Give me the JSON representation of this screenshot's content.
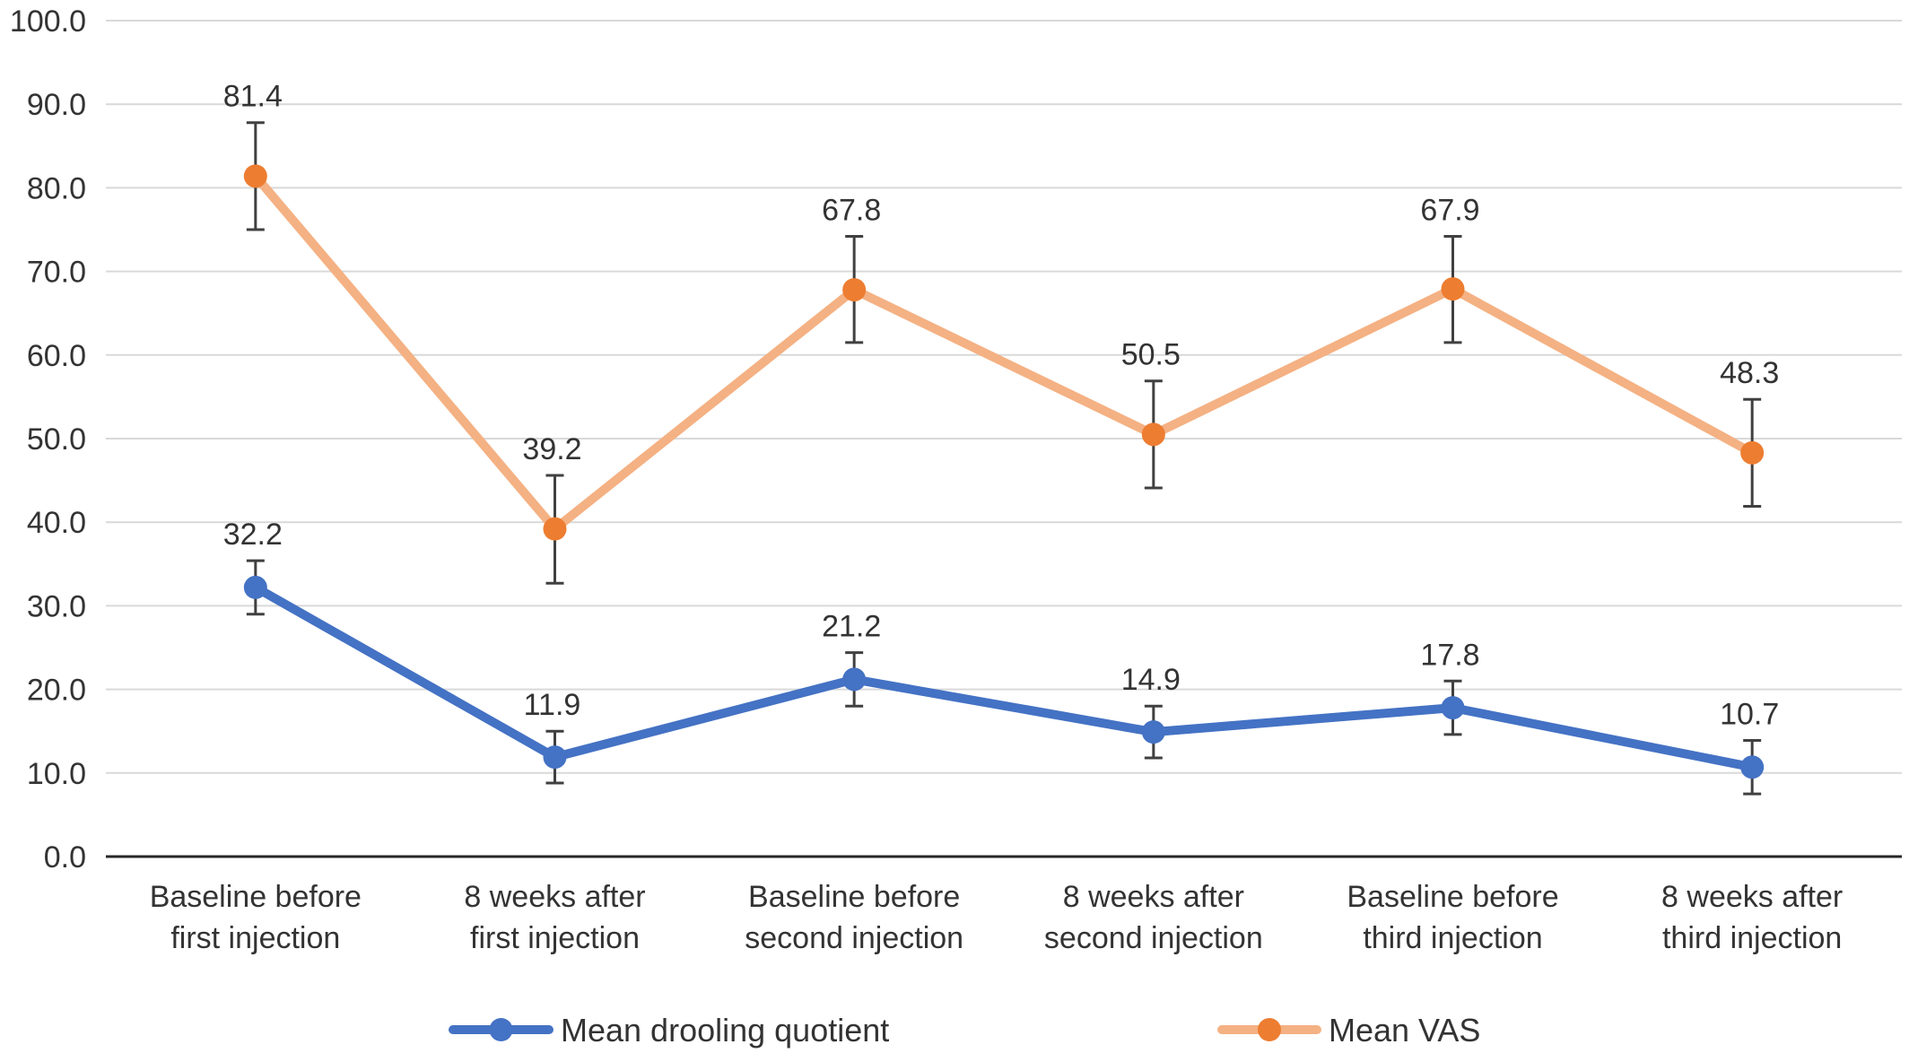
{
  "chart_data": {
    "type": "line",
    "title": "",
    "xlabel": "",
    "ylabel": "",
    "ylim": [
      0,
      100
    ],
    "yticks": [
      "0.0",
      "10.0",
      "20.0",
      "30.0",
      "40.0",
      "50.0",
      "60.0",
      "70.0",
      "80.0",
      "90.0",
      "100.0"
    ],
    "ytick_values": [
      0,
      10,
      20,
      30,
      40,
      50,
      60,
      70,
      80,
      90,
      100
    ],
    "grid": true,
    "legend_position": "bottom",
    "categories": [
      [
        "Baseline before",
        "first injection"
      ],
      [
        "8 weeks after",
        "first injection"
      ],
      [
        "Baseline before",
        "second injection"
      ],
      [
        "8 weeks after",
        "second injection"
      ],
      [
        "Baseline before",
        "third injection"
      ],
      [
        "8 weeks after",
        "third injection"
      ]
    ],
    "series": [
      {
        "name": "Mean drooling quotient",
        "values": [
          32.2,
          11.9,
          21.2,
          14.9,
          17.8,
          10.7
        ],
        "labels": [
          "32.2",
          "11.9",
          "21.2",
          "14.9",
          "17.8",
          "10.7"
        ],
        "error_low": [
          29.0,
          8.8,
          18.0,
          11.8,
          14.6,
          7.5
        ],
        "error_high": [
          35.4,
          15.0,
          24.4,
          18.0,
          21.0,
          13.9
        ],
        "line_color": "#4472C4",
        "marker_color": "#4472C4"
      },
      {
        "name": "Mean VAS",
        "values": [
          81.4,
          39.2,
          67.8,
          50.5,
          67.9,
          48.3
        ],
        "labels": [
          "81.4",
          "39.2",
          "67.8",
          "50.5",
          "67.9",
          "48.3"
        ],
        "error_low": [
          75.0,
          32.7,
          61.5,
          44.1,
          61.5,
          41.9
        ],
        "error_high": [
          87.8,
          45.6,
          74.2,
          56.9,
          74.2,
          54.7
        ],
        "line_color": "#F4B183",
        "marker_color": "#ED7D31"
      }
    ]
  }
}
